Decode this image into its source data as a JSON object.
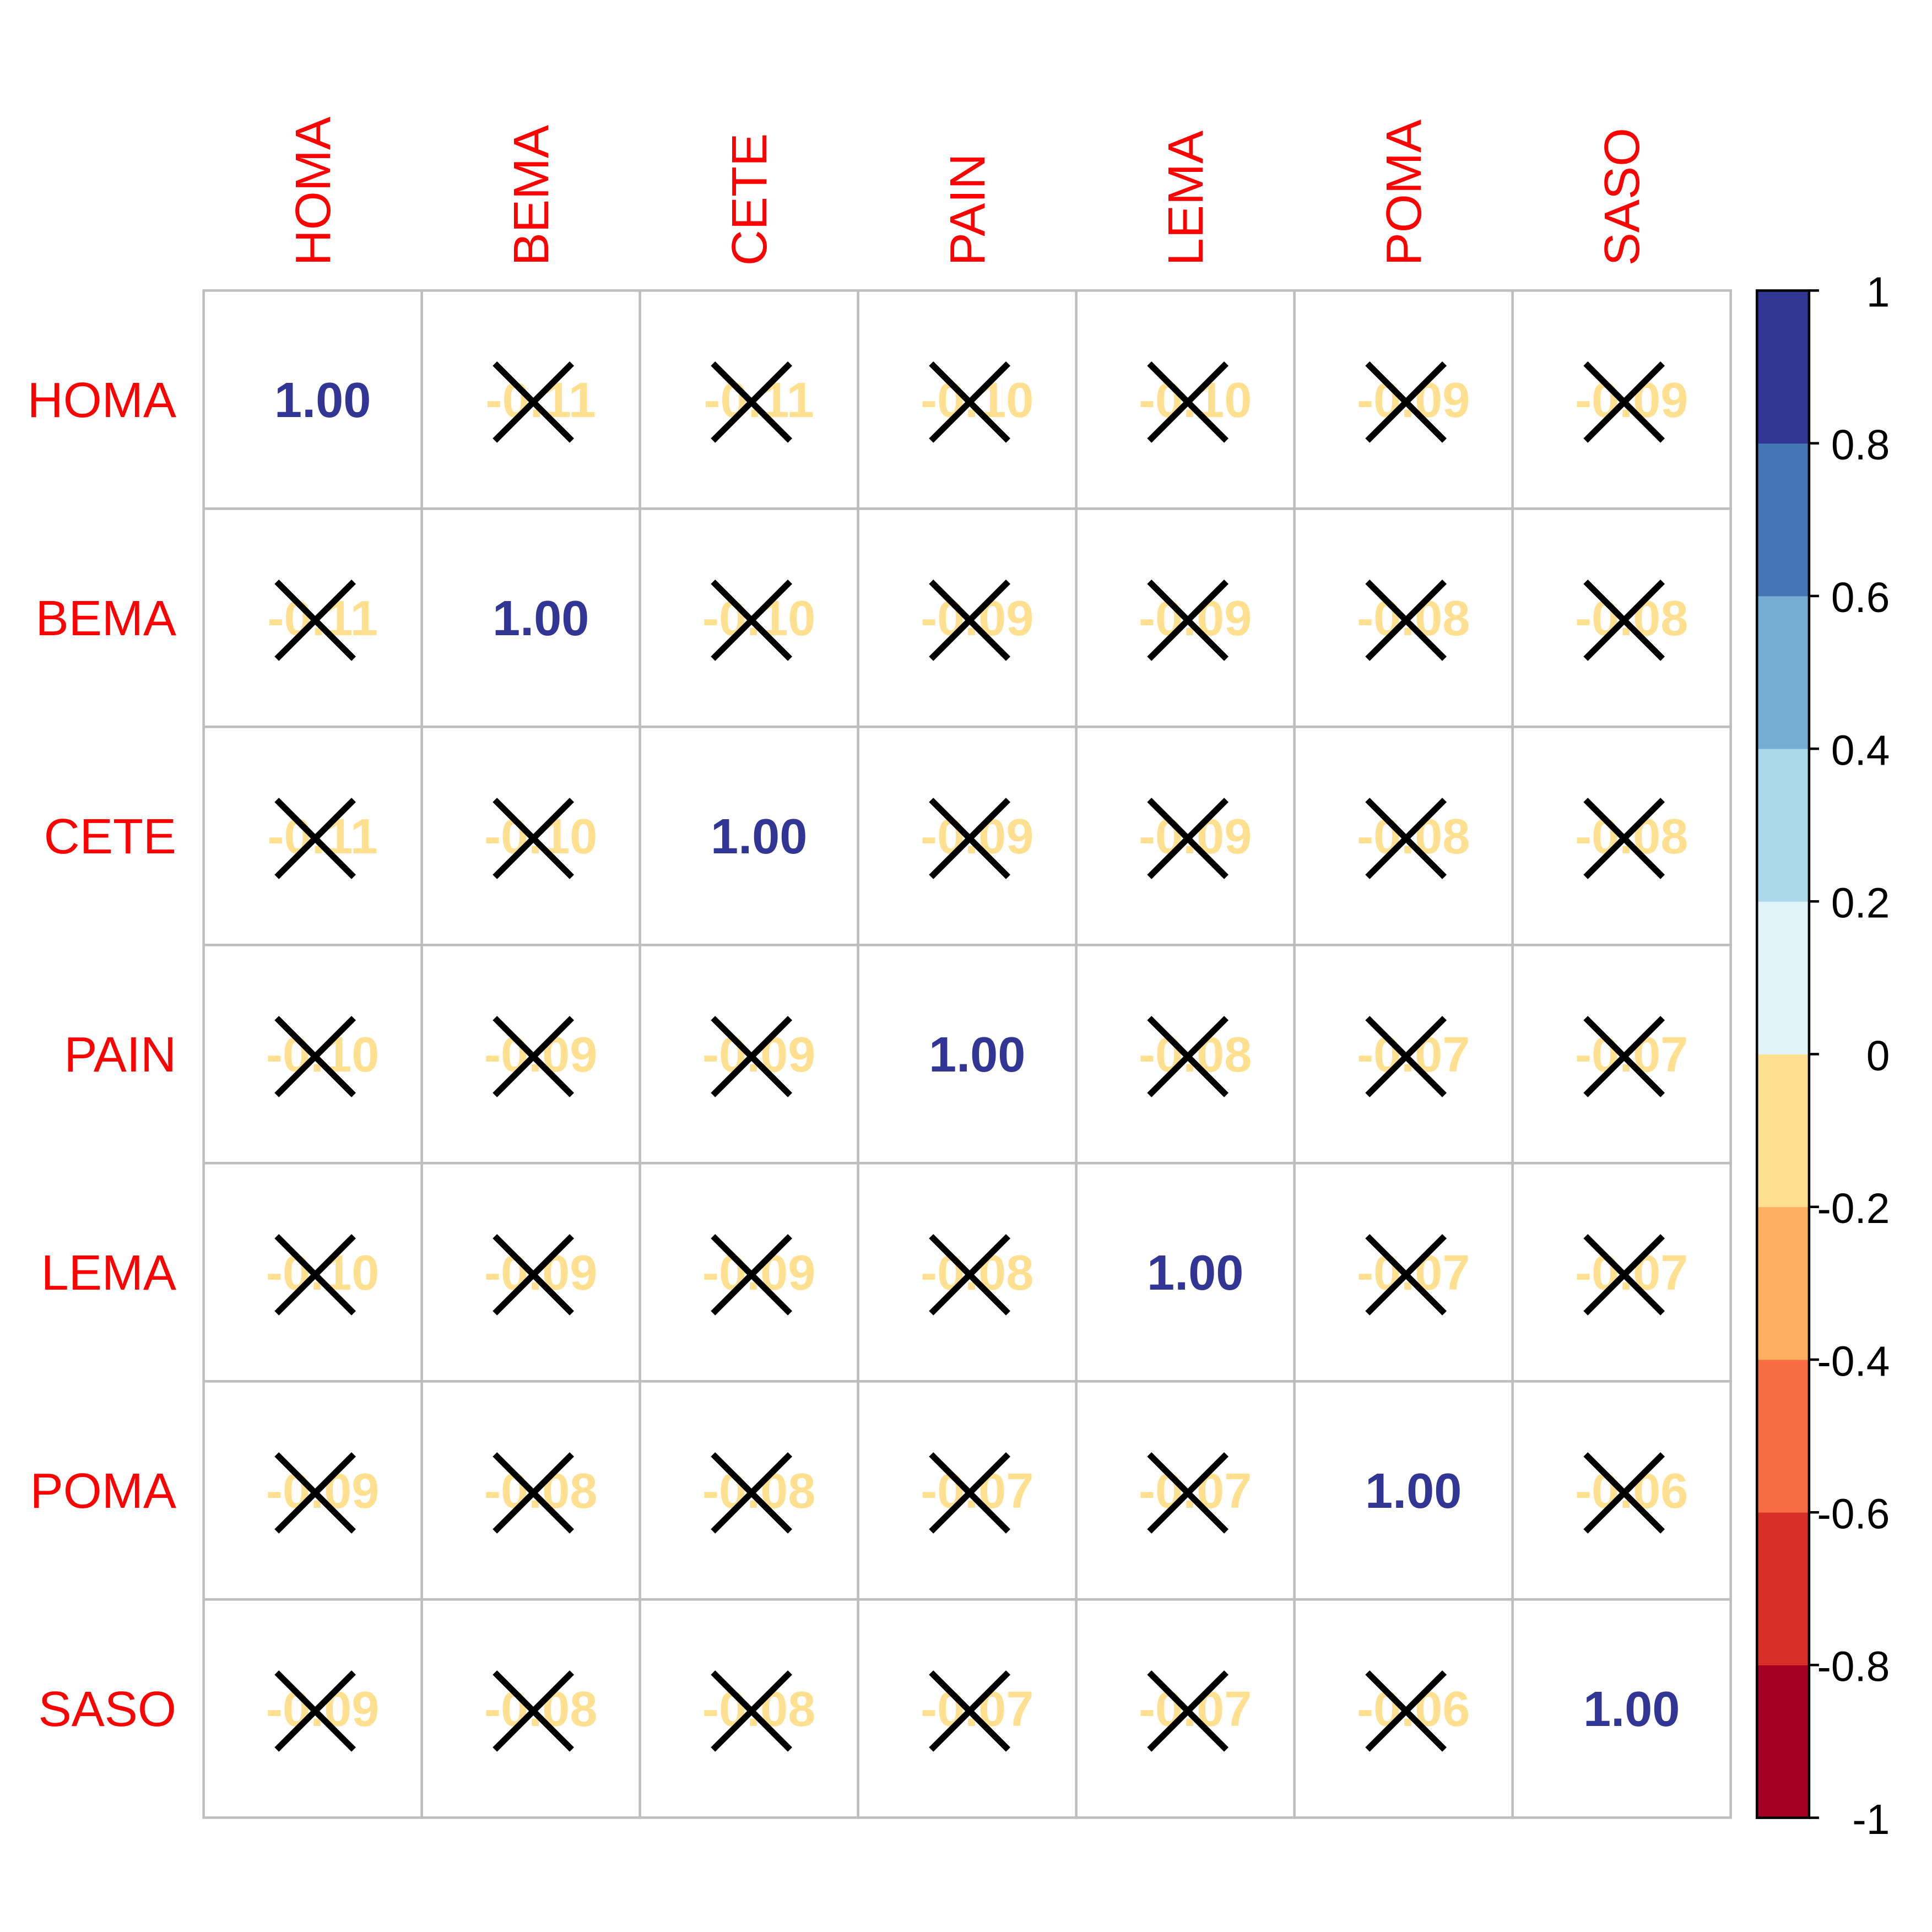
{
  "chart_data": {
    "type": "heatmap",
    "variables": [
      "HOMA",
      "BEMA",
      "CETE",
      "PAIN",
      "LEMA",
      "POMA",
      "SASO"
    ],
    "matrix": [
      [
        1.0,
        -0.11,
        -0.11,
        -0.1,
        -0.1,
        -0.09,
        -0.09
      ],
      [
        -0.11,
        1.0,
        -0.1,
        -0.09,
        -0.09,
        -0.08,
        -0.08
      ],
      [
        -0.11,
        -0.1,
        1.0,
        -0.09,
        -0.09,
        -0.08,
        -0.08
      ],
      [
        -0.1,
        -0.09,
        -0.09,
        1.0,
        -0.08,
        -0.07,
        -0.07
      ],
      [
        -0.1,
        -0.09,
        -0.09,
        -0.08,
        1.0,
        -0.07,
        -0.07
      ],
      [
        -0.09,
        -0.08,
        -0.08,
        -0.07,
        -0.07,
        1.0,
        -0.06
      ],
      [
        -0.09,
        -0.08,
        -0.08,
        -0.07,
        -0.07,
        -0.06,
        1.0
      ]
    ],
    "labels": [
      [
        "1.00",
        "-0.11",
        "-0.11",
        "-0.10",
        "-0.10",
        "-0.09",
        "-0.09"
      ],
      [
        "-0.11",
        "1.00",
        "-0.10",
        "-0.09",
        "-0.09",
        "-0.08",
        "-0.08"
      ],
      [
        "-0.11",
        "-0.10",
        "1.00",
        "-0.09",
        "-0.09",
        "-0.08",
        "-0.08"
      ],
      [
        "-0.10",
        "-0.09",
        "-0.09",
        "1.00",
        "-0.08",
        "-0.07",
        "-0.07"
      ],
      [
        "-0.10",
        "-0.09",
        "-0.09",
        "-0.08",
        "1.00",
        "-0.07",
        "-0.07"
      ],
      [
        "-0.09",
        "-0.08",
        "-0.08",
        "-0.07",
        "-0.07",
        "1.00",
        "-0.06"
      ],
      [
        "-0.09",
        "-0.08",
        "-0.08",
        "-0.07",
        "-0.07",
        "-0.06",
        "1.00"
      ]
    ],
    "crossed": [
      [
        false,
        true,
        true,
        true,
        true,
        true,
        true
      ],
      [
        true,
        false,
        true,
        true,
        true,
        true,
        true
      ],
      [
        true,
        true,
        false,
        true,
        true,
        true,
        true
      ],
      [
        true,
        true,
        true,
        false,
        true,
        true,
        true
      ],
      [
        true,
        true,
        true,
        true,
        false,
        true,
        true
      ],
      [
        true,
        true,
        true,
        true,
        true,
        false,
        true
      ],
      [
        true,
        true,
        true,
        true,
        true,
        true,
        false
      ]
    ],
    "colorbar": {
      "range": [
        -1,
        1
      ],
      "ticks": [
        "1",
        "0.8",
        "0.6",
        "0.4",
        "0.2",
        "0",
        "-0.2",
        "-0.4",
        "-0.6",
        "-0.8",
        "-1"
      ],
      "colors_bottom_to_top": [
        "#a50026",
        "#d73027",
        "#f46d43",
        "#fdae61",
        "#fee090",
        "#e0f3f8",
        "#abd9e9",
        "#74add1",
        "#4575b4",
        "#313695"
      ]
    },
    "label_color": "#ff0000",
    "grid_color": "#bebebe",
    "cross_color": "#000000"
  }
}
